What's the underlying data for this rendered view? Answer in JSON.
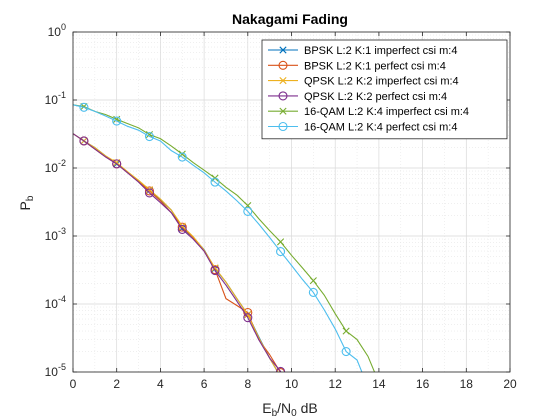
{
  "chart_data": {
    "type": "line",
    "title": "Nakagami Fading",
    "xlabel": {
      "main": "E",
      "sub1": "b",
      "mid": "/N",
      "sub2": "0",
      "tail": " dB"
    },
    "ylabel": {
      "main": "P",
      "sub": "b"
    },
    "x_range": [
      0,
      20
    ],
    "y_range": [
      1e-05,
      1
    ],
    "y_scale": "log",
    "grid": true,
    "minor_grid": true,
    "legend_position": "top-right",
    "x_ticks": [
      {
        "value": 0,
        "label": "0"
      },
      {
        "value": 2,
        "label": "2"
      },
      {
        "value": 4,
        "label": "4"
      },
      {
        "value": 6,
        "label": "6"
      },
      {
        "value": 8,
        "label": "8"
      },
      {
        "value": 10,
        "label": "10"
      },
      {
        "value": 12,
        "label": "12"
      },
      {
        "value": 14,
        "label": "14"
      },
      {
        "value": 16,
        "label": "16"
      },
      {
        "value": 18,
        "label": "18"
      },
      {
        "value": 20,
        "label": "20"
      }
    ],
    "y_ticks": [
      {
        "value": 1,
        "base": "10",
        "exp": "0"
      },
      {
        "value": 0.1,
        "base": "10",
        "exp": "-1"
      },
      {
        "value": 0.01,
        "base": "10",
        "exp": "-2"
      },
      {
        "value": 0.001,
        "base": "10",
        "exp": "-3"
      },
      {
        "value": 0.0001,
        "base": "10",
        "exp": "-4"
      },
      {
        "value": 1e-05,
        "base": "10",
        "exp": "-5"
      }
    ],
    "series": [
      {
        "name": "BPSK L:2 K:1 imperfect csi m:4",
        "color": "#0072BD",
        "marker": "x",
        "x": [
          0,
          0.5,
          1,
          1.5,
          2,
          2.5,
          3,
          3.5,
          4,
          4.5,
          5,
          5.5,
          6,
          6.5,
          7,
          7.5,
          8,
          8.5,
          9,
          9.5,
          10
        ],
        "y": [
          0.032,
          0.025,
          0.02,
          0.015,
          0.0115,
          0.0087,
          0.0065,
          0.0047,
          0.0034,
          0.0024,
          0.0013,
          0.00095,
          0.00063,
          0.00033,
          0.00021,
          0.00012,
          7e-05,
          3.3e-05,
          1.6e-05,
          8.5e-06,
          3.5e-06
        ]
      },
      {
        "name": "BPSK L:2 K:1 perfect csi m:4",
        "color": "#D95319",
        "marker": "o",
        "x": [
          0,
          0.5,
          1,
          1.5,
          2,
          2.5,
          3,
          3.5,
          4,
          4.5,
          5,
          5.5,
          6,
          6.5,
          7,
          7.5,
          8,
          8.5,
          9,
          9.5,
          10
        ],
        "y": [
          0.032,
          0.025,
          0.019,
          0.0145,
          0.0115,
          0.0085,
          0.0063,
          0.0046,
          0.0033,
          0.0022,
          0.00135,
          0.00095,
          0.0006,
          0.00032,
          0.00012,
          9.5e-05,
          7.5e-05,
          3e-05,
          1.8e-05,
          9.8e-06,
          6e-06
        ]
      },
      {
        "name": "QPSK L:2 K:2 imperfect csi m:4",
        "color": "#EDB120",
        "marker": "x",
        "x": [
          0,
          0.5,
          1,
          1.5,
          2,
          2.5,
          3,
          3.5,
          4,
          4.5,
          5,
          5.5,
          6,
          6.5,
          7,
          7.5,
          8,
          8.5,
          9,
          9.5,
          10
        ],
        "y": [
          0.032,
          0.025,
          0.02,
          0.015,
          0.012,
          0.0088,
          0.0066,
          0.0048,
          0.0035,
          0.0024,
          0.0014,
          0.00098,
          0.00062,
          0.00034,
          0.00021,
          0.00012,
          7e-05,
          3.2e-05,
          1.6e-05,
          8.5e-06,
          3.5e-06
        ]
      },
      {
        "name": "QPSK L:2 K:2 perfect csi m:4",
        "color": "#7E2F8E",
        "marker": "o",
        "x": [
          0,
          0.5,
          1,
          1.5,
          2,
          2.5,
          3,
          3.5,
          4,
          4.5,
          5,
          5.5,
          6,
          6.5,
          7,
          7.5,
          8,
          8.5,
          9,
          9.5,
          10
        ],
        "y": [
          0.032,
          0.025,
          0.019,
          0.0145,
          0.0115,
          0.0085,
          0.0062,
          0.0043,
          0.0031,
          0.0022,
          0.00125,
          0.0009,
          0.0006,
          0.00031,
          0.00019,
          0.00011,
          6.3e-05,
          3e-05,
          1.6e-05,
          1.02e-05,
          5e-06
        ]
      },
      {
        "name": "16-QAM L:2 K:4 imperfect csi m:4",
        "color": "#77AC30",
        "marker": "x",
        "x": [
          0,
          0.5,
          1,
          1.5,
          2,
          2.5,
          3,
          3.5,
          4,
          4.5,
          5,
          5.5,
          6,
          6.5,
          7,
          7.5,
          8,
          8.5,
          9,
          9.5,
          10,
          10.5,
          11,
          11.5,
          12,
          12.5,
          13,
          13.5,
          14
        ],
        "y": [
          0.085,
          0.08,
          0.068,
          0.061,
          0.052,
          0.045,
          0.039,
          0.031,
          0.027,
          0.021,
          0.016,
          0.012,
          0.0093,
          0.0071,
          0.0052,
          0.004,
          0.0028,
          0.0018,
          0.0012,
          0.00082,
          0.00052,
          0.00034,
          0.00022,
          0.000135,
          7.2e-05,
          4e-05,
          3e-05,
          1.7e-05,
          7e-06
        ]
      },
      {
        "name": "16-QAM L:2 K:4 perfect csi m:4",
        "color": "#4DBEEE",
        "marker": "o",
        "x": [
          0,
          0.5,
          1,
          1.5,
          2,
          2.5,
          3,
          3.5,
          4,
          4.5,
          5,
          5.5,
          6,
          6.5,
          7,
          7.5,
          8,
          8.5,
          9,
          9.5,
          10,
          10.5,
          11,
          11.5,
          12,
          12.5,
          13,
          13.5
        ],
        "y": [
          0.085,
          0.078,
          0.068,
          0.058,
          0.049,
          0.041,
          0.036,
          0.029,
          0.025,
          0.018,
          0.0145,
          0.011,
          0.0085,
          0.0062,
          0.0046,
          0.0033,
          0.0023,
          0.0015,
          0.00095,
          0.00059,
          0.00037,
          0.00023,
          0.000148,
          8.2e-05,
          4.3e-05,
          2e-05,
          1.5e-05,
          6e-06
        ]
      }
    ]
  }
}
